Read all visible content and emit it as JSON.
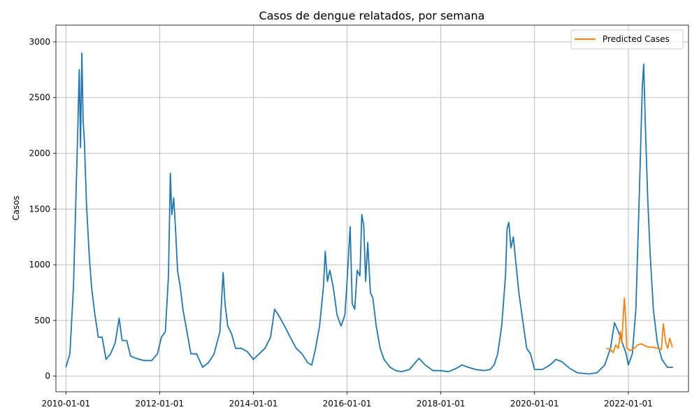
{
  "chart_data": {
    "type": "line",
    "title": "Casos de dengue relatados, por semana",
    "xlabel": "",
    "ylabel": "Casos",
    "x_ticks": [
      "2010-01-01",
      "2012-01-01",
      "2014-01-01",
      "2016-01-01",
      "2018-01-01",
      "2020-01-01",
      "2022-01-01"
    ],
    "y_ticks": [
      0,
      500,
      1000,
      1500,
      2000,
      2500,
      3000
    ],
    "xlim": [
      "2009-10-15",
      "2023-04-15"
    ],
    "ylim": [
      -140,
      3150
    ],
    "grid": true,
    "legend": {
      "placement": "top-right",
      "entries": [
        "Predicted Cases"
      ]
    },
    "series": [
      {
        "color": "#1f77b4",
        "points": [
          [
            "2010-01-01",
            80
          ],
          [
            "2010-02-01",
            200
          ],
          [
            "2010-03-01",
            800
          ],
          [
            "2010-04-01",
            2100
          ],
          [
            "2010-04-15",
            2750
          ],
          [
            "2010-04-25",
            2050
          ],
          [
            "2010-05-05",
            2900
          ],
          [
            "2010-05-15",
            2300
          ],
          [
            "2010-05-25",
            2100
          ],
          [
            "2010-06-10",
            1550
          ],
          [
            "2010-07-01",
            1100
          ],
          [
            "2010-07-20",
            800
          ],
          [
            "2010-08-15",
            550
          ],
          [
            "2010-09-10",
            350
          ],
          [
            "2010-10-10",
            350
          ],
          [
            "2010-11-10",
            150
          ],
          [
            "2010-12-15",
            200
          ],
          [
            "2011-01-20",
            300
          ],
          [
            "2011-02-20",
            520
          ],
          [
            "2011-03-15",
            320
          ],
          [
            "2011-04-20",
            320
          ],
          [
            "2011-05-20",
            180
          ],
          [
            "2011-07-01",
            160
          ],
          [
            "2011-09-01",
            140
          ],
          [
            "2011-11-01",
            140
          ],
          [
            "2011-12-15",
            200
          ],
          [
            "2012-01-15",
            350
          ],
          [
            "2012-02-15",
            400
          ],
          [
            "2012-03-10",
            900
          ],
          [
            "2012-03-25",
            1820
          ],
          [
            "2012-04-05",
            1450
          ],
          [
            "2012-04-20",
            1600
          ],
          [
            "2012-05-05",
            1300
          ],
          [
            "2012-05-20",
            950
          ],
          [
            "2012-06-10",
            800
          ],
          [
            "2012-07-01",
            600
          ],
          [
            "2012-08-01",
            400
          ],
          [
            "2012-09-01",
            200
          ],
          [
            "2012-10-15",
            200
          ],
          [
            "2012-12-01",
            80
          ],
          [
            "2013-01-15",
            120
          ],
          [
            "2013-03-01",
            200
          ],
          [
            "2013-04-15",
            400
          ],
          [
            "2013-05-10",
            930
          ],
          [
            "2013-05-25",
            650
          ],
          [
            "2013-06-15",
            450
          ],
          [
            "2013-07-15",
            380
          ],
          [
            "2013-08-15",
            250
          ],
          [
            "2013-10-01",
            250
          ],
          [
            "2013-11-15",
            220
          ],
          [
            "2014-01-01",
            150
          ],
          [
            "2014-02-15",
            200
          ],
          [
            "2014-04-01",
            250
          ],
          [
            "2014-05-15",
            350
          ],
          [
            "2014-06-15",
            600
          ],
          [
            "2014-07-15",
            550
          ],
          [
            "2014-09-01",
            450
          ],
          [
            "2014-10-15",
            350
          ],
          [
            "2014-12-01",
            250
          ],
          [
            "2015-01-15",
            200
          ],
          [
            "2015-03-01",
            120
          ],
          [
            "2015-04-01",
            100
          ],
          [
            "2015-05-01",
            250
          ],
          [
            "2015-06-01",
            450
          ],
          [
            "2015-07-01",
            800
          ],
          [
            "2015-07-15",
            1120
          ],
          [
            "2015-08-01",
            850
          ],
          [
            "2015-08-20",
            950
          ],
          [
            "2015-09-15",
            800
          ],
          [
            "2015-10-15",
            550
          ],
          [
            "2015-11-15",
            450
          ],
          [
            "2015-12-15",
            550
          ],
          [
            "2016-01-01",
            850
          ],
          [
            "2016-01-25",
            1340
          ],
          [
            "2016-02-10",
            650
          ],
          [
            "2016-03-01",
            600
          ],
          [
            "2016-03-20",
            950
          ],
          [
            "2016-04-10",
            900
          ],
          [
            "2016-04-25",
            1450
          ],
          [
            "2016-05-10",
            1350
          ],
          [
            "2016-05-25",
            850
          ],
          [
            "2016-06-10",
            1200
          ],
          [
            "2016-07-01",
            750
          ],
          [
            "2016-07-20",
            700
          ],
          [
            "2016-08-15",
            450
          ],
          [
            "2016-09-15",
            250
          ],
          [
            "2016-10-15",
            150
          ],
          [
            "2016-12-01",
            80
          ],
          [
            "2017-01-15",
            50
          ],
          [
            "2017-03-01",
            40
          ],
          [
            "2017-05-01",
            60
          ],
          [
            "2017-06-15",
            120
          ],
          [
            "2017-07-15",
            160
          ],
          [
            "2017-09-01",
            100
          ],
          [
            "2017-11-01",
            50
          ],
          [
            "2018-01-01",
            50
          ],
          [
            "2018-03-01",
            40
          ],
          [
            "2018-05-01",
            70
          ],
          [
            "2018-06-15",
            100
          ],
          [
            "2018-08-01",
            80
          ],
          [
            "2018-10-01",
            60
          ],
          [
            "2018-12-01",
            50
          ],
          [
            "2019-01-20",
            60
          ],
          [
            "2019-02-20",
            100
          ],
          [
            "2019-03-20",
            200
          ],
          [
            "2019-04-20",
            450
          ],
          [
            "2019-05-20",
            900
          ],
          [
            "2019-06-01",
            1320
          ],
          [
            "2019-06-15",
            1380
          ],
          [
            "2019-07-01",
            1150
          ],
          [
            "2019-07-20",
            1250
          ],
          [
            "2019-08-10",
            1000
          ],
          [
            "2019-09-01",
            750
          ],
          [
            "2019-10-01",
            500
          ],
          [
            "2019-11-01",
            250
          ],
          [
            "2019-12-01",
            200
          ],
          [
            "2020-01-01",
            60
          ],
          [
            "2020-03-01",
            60
          ],
          [
            "2020-05-01",
            100
          ],
          [
            "2020-06-15",
            150
          ],
          [
            "2020-08-01",
            130
          ],
          [
            "2020-10-01",
            70
          ],
          [
            "2020-12-01",
            30
          ],
          [
            "2021-03-01",
            20
          ],
          [
            "2021-05-01",
            30
          ],
          [
            "2021-07-01",
            100
          ],
          [
            "2021-08-15",
            250
          ],
          [
            "2021-09-15",
            480
          ],
          [
            "2021-10-15",
            400
          ],
          [
            "2021-11-15",
            300
          ],
          [
            "2021-12-15",
            200
          ],
          [
            "2022-01-01",
            100
          ],
          [
            "2022-02-01",
            200
          ],
          [
            "2022-03-01",
            600
          ],
          [
            "2022-04-01",
            1800
          ],
          [
            "2022-04-20",
            2600
          ],
          [
            "2022-05-01",
            2800
          ],
          [
            "2022-05-15",
            2200
          ],
          [
            "2022-06-01",
            1600
          ],
          [
            "2022-06-20",
            1100
          ],
          [
            "2022-07-15",
            600
          ],
          [
            "2022-08-15",
            300
          ],
          [
            "2022-09-20",
            150
          ],
          [
            "2022-11-01",
            80
          ],
          [
            "2022-12-15",
            80
          ]
        ]
      },
      {
        "name": "Predicted Cases",
        "color": "#ff7f0e",
        "points": [
          [
            "2021-07-15",
            250
          ],
          [
            "2021-08-15",
            240
          ],
          [
            "2021-09-05",
            210
          ],
          [
            "2021-09-25",
            280
          ],
          [
            "2021-10-15",
            250
          ],
          [
            "2021-11-01",
            400
          ],
          [
            "2021-11-10",
            300
          ],
          [
            "2021-11-20",
            480
          ],
          [
            "2021-12-01",
            700
          ],
          [
            "2021-12-10",
            550
          ],
          [
            "2021-12-20",
            250
          ],
          [
            "2022-01-15",
            230
          ],
          [
            "2022-02-15",
            250
          ],
          [
            "2022-03-15",
            280
          ],
          [
            "2022-04-15",
            290
          ],
          [
            "2022-05-15",
            270
          ],
          [
            "2022-06-15",
            260
          ],
          [
            "2022-07-15",
            260
          ],
          [
            "2022-08-15",
            250
          ],
          [
            "2022-09-15",
            240
          ],
          [
            "2022-10-01",
            470
          ],
          [
            "2022-10-20",
            300
          ],
          [
            "2022-11-05",
            250
          ],
          [
            "2022-11-20",
            340
          ],
          [
            "2022-12-10",
            260
          ]
        ]
      }
    ]
  }
}
